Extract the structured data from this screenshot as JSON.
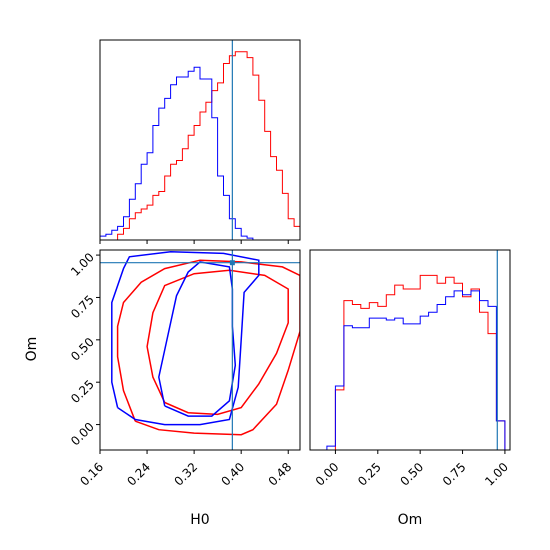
{
  "colors": {
    "series_a": "#ff0000",
    "series_b": "#0000ff",
    "truth": "#1f77b4",
    "axis": "#000000"
  },
  "chart_data": [
    {
      "panel": "H0 marginal histogram",
      "type": "histogram-step",
      "xlim": [
        0.16,
        0.5
      ],
      "bin_edges": [
        0.16,
        0.17,
        0.18,
        0.19,
        0.2,
        0.21,
        0.22,
        0.23,
        0.24,
        0.25,
        0.26,
        0.27,
        0.28,
        0.29,
        0.3,
        0.31,
        0.32,
        0.33,
        0.34,
        0.35,
        0.36,
        0.37,
        0.38,
        0.39,
        0.4,
        0.41,
        0.42,
        0.43,
        0.44,
        0.45,
        0.46,
        0.47,
        0.48,
        0.49,
        0.5
      ],
      "series": [
        {
          "color_key": "series_a",
          "values": [
            0,
            0,
            0,
            0.03,
            0.06,
            0.11,
            0.14,
            0.16,
            0.18,
            0.23,
            0.25,
            0.33,
            0.39,
            0.41,
            0.47,
            0.54,
            0.59,
            0.66,
            0.71,
            0.77,
            0.81,
            0.91,
            0.95,
            0.97,
            0.97,
            0.94,
            0.85,
            0.72,
            0.56,
            0.43,
            0.36,
            0.24,
            0.11,
            0.07
          ]
        },
        {
          "color_key": "series_b",
          "values": [
            0.02,
            0.03,
            0.05,
            0.07,
            0.12,
            0.21,
            0.29,
            0.39,
            0.45,
            0.59,
            0.68,
            0.73,
            0.8,
            0.84,
            0.84,
            0.87,
            0.89,
            0.83,
            0.83,
            0.63,
            0.33,
            0.23,
            0.11,
            0.06,
            0.02,
            0.01,
            0,
            0,
            0,
            0,
            0,
            0,
            0,
            0
          ]
        }
      ],
      "truth_x": 0.385,
      "xticks": [
        0.16,
        0.24,
        0.32,
        0.4,
        0.48
      ]
    },
    {
      "panel": "Om vs H0 contours",
      "type": "contour",
      "xlabel": "H0",
      "ylabel": "Om",
      "xlim": [
        0.16,
        0.5
      ],
      "ylim": [
        -0.15,
        1.03
      ],
      "xtick_labels": [
        "0.16",
        "0.24",
        "0.32",
        "0.40",
        "0.48"
      ],
      "xtick_values": [
        0.16,
        0.24,
        0.32,
        0.4,
        0.48
      ],
      "ytick_labels": [
        "0.00",
        "0.25",
        "0.50",
        "0.75",
        "1.00"
      ],
      "ytick_values": [
        0.0,
        0.25,
        0.5,
        0.75,
        1.0
      ],
      "truth": {
        "x": 0.385,
        "y": 0.955
      },
      "contours": [
        {
          "color_key": "series_a",
          "level": "outer",
          "points": [
            [
              0.22,
              0.02
            ],
            [
              0.26,
              -0.03
            ],
            [
              0.32,
              -0.05
            ],
            [
              0.4,
              -0.06
            ],
            [
              0.42,
              -0.03
            ],
            [
              0.46,
              0.12
            ],
            [
              0.48,
              0.32
            ],
            [
              0.5,
              0.55
            ],
            [
              0.5,
              0.88
            ],
            [
              0.47,
              0.93
            ],
            [
              0.4,
              0.96
            ],
            [
              0.33,
              0.97
            ],
            [
              0.27,
              0.92
            ],
            [
              0.23,
              0.84
            ],
            [
              0.2,
              0.72
            ],
            [
              0.19,
              0.58
            ],
            [
              0.19,
              0.4
            ],
            [
              0.2,
              0.2
            ],
            [
              0.22,
              0.02
            ]
          ]
        },
        {
          "color_key": "series_a",
          "level": "inner",
          "points": [
            [
              0.27,
              0.13
            ],
            [
              0.31,
              0.07
            ],
            [
              0.36,
              0.06
            ],
            [
              0.4,
              0.1
            ],
            [
              0.43,
              0.24
            ],
            [
              0.46,
              0.42
            ],
            [
              0.48,
              0.6
            ],
            [
              0.48,
              0.8
            ],
            [
              0.44,
              0.88
            ],
            [
              0.38,
              0.91
            ],
            [
              0.32,
              0.89
            ],
            [
              0.27,
              0.82
            ],
            [
              0.25,
              0.66
            ],
            [
              0.24,
              0.46
            ],
            [
              0.25,
              0.28
            ],
            [
              0.27,
              0.13
            ]
          ]
        },
        {
          "color_key": "series_b",
          "level": "outer",
          "points": [
            [
              0.19,
              0.1
            ],
            [
              0.22,
              0.03
            ],
            [
              0.27,
              0.0
            ],
            [
              0.33,
              0.0
            ],
            [
              0.38,
              0.03
            ],
            [
              0.395,
              0.22
            ],
            [
              0.4,
              0.5
            ],
            [
              0.405,
              0.78
            ],
            [
              0.43,
              0.88
            ],
            [
              0.43,
              0.97
            ],
            [
              0.37,
              1.01
            ],
            [
              0.28,
              1.02
            ],
            [
              0.21,
              0.99
            ],
            [
              0.2,
              0.92
            ],
            [
              0.18,
              0.72
            ],
            [
              0.18,
              0.45
            ],
            [
              0.18,
              0.25
            ],
            [
              0.19,
              0.1
            ]
          ]
        },
        {
          "color_key": "series_b",
          "level": "inner",
          "points": [
            [
              0.27,
              0.11
            ],
            [
              0.31,
              0.05
            ],
            [
              0.35,
              0.05
            ],
            [
              0.38,
              0.14
            ],
            [
              0.39,
              0.35
            ],
            [
              0.385,
              0.58
            ],
            [
              0.385,
              0.8
            ],
            [
              0.38,
              0.93
            ],
            [
              0.33,
              0.96
            ],
            [
              0.31,
              0.9
            ],
            [
              0.29,
              0.76
            ],
            [
              0.28,
              0.6
            ],
            [
              0.27,
              0.44
            ],
            [
              0.26,
              0.28
            ],
            [
              0.27,
              0.11
            ]
          ]
        }
      ]
    },
    {
      "panel": "Om marginal histogram",
      "type": "histogram-step",
      "xlabel": "Om",
      "xlim": [
        -0.15,
        1.03
      ],
      "xtick_labels": [
        "0.00",
        "0.25",
        "0.50",
        "0.75",
        "1.00"
      ],
      "xtick_values": [
        0.0,
        0.25,
        0.5,
        0.75,
        1.0
      ],
      "bin_edges": [
        -0.1,
        -0.05,
        0.0,
        0.05,
        0.1,
        0.15,
        0.2,
        0.25,
        0.3,
        0.35,
        0.4,
        0.45,
        0.5,
        0.55,
        0.6,
        0.65,
        0.7,
        0.75,
        0.8,
        0.85,
        0.9,
        0.95,
        1.0
      ],
      "series": [
        {
          "color_key": "series_a",
          "values": [
            0,
            0,
            0.31,
            0.77,
            0.75,
            0.73,
            0.76,
            0.74,
            0.8,
            0.85,
            0.83,
            0.83,
            0.9,
            0.9,
            0.86,
            0.89,
            0.86,
            0.79,
            0.83,
            0.71,
            0.6,
            0.15
          ]
        },
        {
          "color_key": "series_b",
          "values": [
            0,
            0.02,
            0.33,
            0.64,
            0.63,
            0.63,
            0.68,
            0.68,
            0.67,
            0.68,
            0.65,
            0.65,
            0.69,
            0.71,
            0.75,
            0.79,
            0.82,
            0.8,
            0.82,
            0.77,
            0.74,
            0.15
          ]
        }
      ],
      "truth_x": 0.955
    }
  ]
}
